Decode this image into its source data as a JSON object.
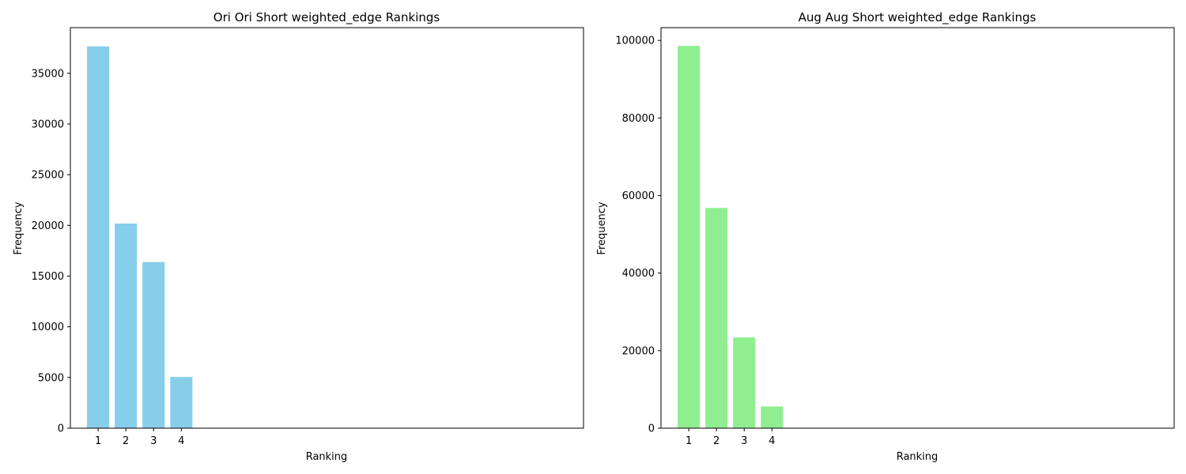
{
  "chart_data": [
    {
      "type": "bar",
      "title": "Ori Ori Short weighted_edge Rankings",
      "xlabel": "Ranking",
      "ylabel": "Frequency",
      "categories": [
        "1",
        "2",
        "3",
        "4"
      ],
      "values": [
        37650,
        20180,
        16380,
        5050
      ],
      "color": "#87ceeb",
      "ylim": [
        0,
        39500
      ],
      "yticks": [
        0,
        5000,
        10000,
        15000,
        20000,
        25000,
        30000,
        35000
      ],
      "xlim": [
        0.0,
        18.5
      ],
      "grid": false,
      "legend": "none"
    },
    {
      "type": "bar",
      "title": "Aug Aug Short weighted_edge Rankings",
      "xlabel": "Ranking",
      "ylabel": "Frequency",
      "categories": [
        "1",
        "2",
        "3",
        "4"
      ],
      "values": [
        98600,
        56800,
        23400,
        5600
      ],
      "color": "#90ee90",
      "ylim": [
        0,
        103300
      ],
      "yticks": [
        0,
        20000,
        40000,
        60000,
        80000,
        100000
      ],
      "xlim": [
        0.0,
        18.5
      ],
      "grid": false,
      "legend": "none"
    }
  ]
}
